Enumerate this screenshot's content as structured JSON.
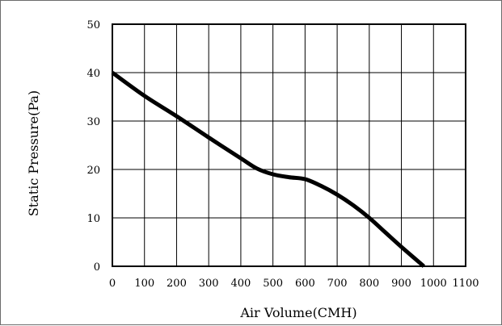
{
  "chart_data": {
    "type": "line",
    "title": "",
    "xlabel": "Air Volume(CMH)",
    "ylabel": "Static Pressure(Pa)",
    "xlim": [
      0,
      1100
    ],
    "ylim": [
      0,
      50
    ],
    "x_ticks": [
      "0",
      "100",
      "200",
      "300",
      "400",
      "500",
      "600",
      "700",
      "800",
      "900",
      "1000",
      "1100"
    ],
    "y_ticks": [
      "0",
      "10",
      "20",
      "30",
      "40",
      "50"
    ],
    "grid": true,
    "series": [
      {
        "x": [
          0,
          100,
          200,
          300,
          400,
          450,
          500,
          550,
          600,
          650,
          700,
          750,
          800,
          850,
          900,
          970
        ],
        "y": [
          40,
          35.2,
          31,
          26.6,
          22.3,
          20.2,
          19,
          18.4,
          18,
          16.6,
          14.8,
          12.6,
          10,
          7,
          4,
          0
        ]
      }
    ]
  }
}
